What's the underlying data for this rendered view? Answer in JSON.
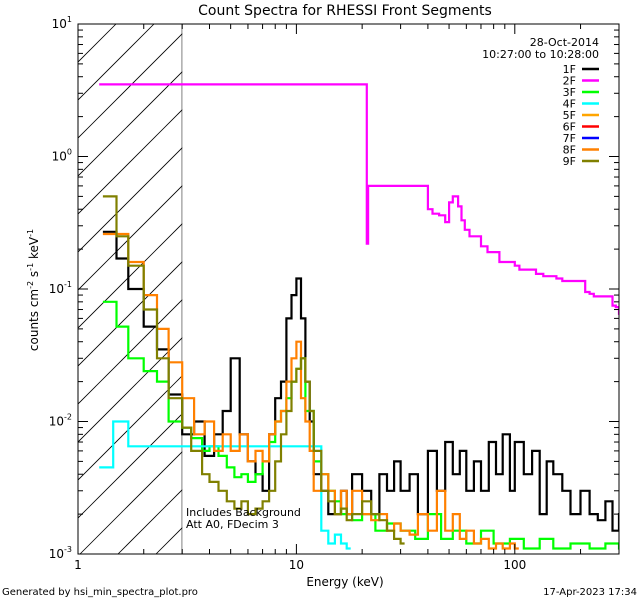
{
  "chart_data": {
    "type": "line",
    "title": "Count Spectra for RHESSI Front Segments",
    "xlabel": "Energy (keV)",
    "ylabel_main": "counts cm",
    "ylabel_sup1": "-2",
    "ylabel_mid": " s",
    "ylabel_sup2": "-1",
    "ylabel_end": " keV",
    "ylabel_sup3": "-1",
    "x_scale": "log",
    "y_scale": "log",
    "xlim": [
      1,
      300
    ],
    "ylim": [
      0.001,
      10
    ],
    "x_ticks": [
      {
        "value": 1,
        "label": "1"
      },
      {
        "value": 10,
        "label": "10"
      },
      {
        "value": 100,
        "label": "100"
      }
    ],
    "y_ticks": [
      {
        "value": 0.001,
        "base": "10",
        "exp": "-3"
      },
      {
        "value": 0.01,
        "base": "10",
        "exp": "-2"
      },
      {
        "value": 0.1,
        "base": "10",
        "exp": "-1"
      },
      {
        "value": 1,
        "base": "10",
        "exp": "0"
      },
      {
        "value": 10,
        "base": "10",
        "exp": "1"
      }
    ],
    "hatched_region": {
      "x_from": 1,
      "x_to": 3
    },
    "date_label": "28-Oct-2014",
    "time_label": "10:27:00 to 10:28:00",
    "annotation_line1": "Includes Background",
    "annotation_line2": "Att A0, FDecim 3",
    "footer_left": "Generated by hsi_min_spectra_plot.pro",
    "footer_right": "17-Apr-2023 17:34",
    "series": [
      {
        "name": "1F",
        "color": "#000000",
        "x": [
          1.3,
          1.5,
          1.7,
          2.0,
          2.3,
          2.6,
          3.0,
          3.4,
          3.8,
          4.2,
          4.6,
          5.0,
          5.5,
          6.0,
          6.5,
          7.0,
          7.5,
          8.0,
          8.5,
          9.0,
          9.5,
          10.0,
          10.5,
          11.0,
          11.5,
          12.0,
          13.0,
          14.0,
          15.0,
          16.0,
          17.0,
          18.0,
          20.0,
          22.0,
          24.0,
          26.0,
          28.0,
          30.0,
          33.0,
          36.0,
          40.0,
          44.0,
          48.0,
          52.0,
          56.0,
          60.0,
          65.0,
          70.0,
          76.0,
          82.0,
          88.0,
          95.0,
          100.0,
          110.0,
          120.0,
          130.0,
          140.0,
          150.0,
          165.0,
          180.0,
          200.0,
          220.0,
          240.0,
          260.0,
          280.0,
          300.0
        ],
        "y": [
          0.27,
          0.17,
          0.1,
          0.052,
          0.035,
          0.016,
          0.008,
          0.01,
          0.0055,
          0.008,
          0.012,
          0.03,
          0.008,
          0.005,
          0.004,
          0.003,
          0.008,
          0.015,
          0.02,
          0.06,
          0.09,
          0.12,
          0.06,
          0.02,
          0.01,
          0.004,
          0.003,
          0.002,
          0.002,
          0.003,
          0.002,
          0.004,
          0.003,
          0.002,
          0.004,
          0.003,
          0.005,
          0.003,
          0.004,
          0.002,
          0.006,
          0.003,
          0.007,
          0.004,
          0.006,
          0.003,
          0.005,
          0.003,
          0.007,
          0.004,
          0.008,
          0.003,
          0.007,
          0.004,
          0.006,
          0.002,
          0.005,
          0.004,
          0.003,
          0.002,
          0.003,
          0.002,
          0.0018,
          0.0025,
          0.0015,
          0.002
        ]
      },
      {
        "name": "2F",
        "color": "#ff00ff",
        "x": [
          1.25,
          1.4,
          21.0,
          21.3,
          40.0,
          42.0,
          45.0,
          48.0,
          50.0,
          52.0,
          55.0,
          57.0,
          59.0,
          62.0,
          70.0,
          75.0,
          85.0,
          100.0,
          105.0,
          115.0,
          125.0,
          135.0,
          155.0,
          165.0,
          210.0,
          220.0,
          230.0,
          280.0,
          290.0,
          300.0
        ],
        "y": [
          3.5,
          3.5,
          0.22,
          0.6,
          0.4,
          0.37,
          0.36,
          0.32,
          0.45,
          0.5,
          0.42,
          0.33,
          0.28,
          0.25,
          0.21,
          0.19,
          0.16,
          0.15,
          0.14,
          0.14,
          0.13,
          0.125,
          0.12,
          0.115,
          0.095,
          0.092,
          0.088,
          0.075,
          0.073,
          0.065
        ]
      },
      {
        "name": "3F",
        "color": "#00ff00",
        "x": [
          1.3,
          1.5,
          1.7,
          2.0,
          2.3,
          2.6,
          3.0,
          3.3,
          3.7,
          4.0,
          4.4,
          4.8,
          5.2,
          5.6,
          6.0,
          6.5,
          7.0,
          7.5,
          8.0,
          8.5,
          9.0,
          9.5,
          10.0,
          10.5,
          11.0,
          12.0,
          13.0,
          14.0,
          15.0,
          16.0,
          18.0,
          20.0,
          23.0,
          26.0,
          30.0,
          35.0,
          40.0,
          46.0,
          52.0,
          60.0,
          70.0,
          80.0,
          95.0,
          110.0,
          130.0,
          150.0,
          180.0,
          220.0,
          260.0,
          300.0
        ],
        "y": [
          0.08,
          0.052,
          0.03,
          0.024,
          0.02,
          0.01,
          0.009,
          0.0075,
          0.006,
          0.0065,
          0.0055,
          0.0045,
          0.0038,
          0.004,
          0.0035,
          0.004,
          0.005,
          0.007,
          0.01,
          0.012,
          0.015,
          0.02,
          0.025,
          0.03,
          0.012,
          0.005,
          0.004,
          0.003,
          0.0025,
          0.002,
          0.0018,
          0.002,
          0.0015,
          0.0017,
          0.0015,
          0.0013,
          0.002,
          0.0013,
          0.0015,
          0.0012,
          0.0015,
          0.0012,
          0.0013,
          0.0011,
          0.0013,
          0.0011,
          0.0012,
          0.0011,
          0.0012,
          0.0011
        ]
      },
      {
        "name": "4F",
        "color": "#00ffff",
        "x": [
          1.25,
          1.45,
          1.7,
          2.0,
          13.0,
          14.0,
          15.0,
          16.0,
          17.0
        ],
        "y": [
          0.0045,
          0.01,
          0.0065,
          0.0065,
          0.0015,
          0.0012,
          0.0014,
          0.0012,
          0.0011
        ]
      },
      {
        "name": "5F",
        "color": "#ffa500",
        "x": [],
        "y": []
      },
      {
        "name": "6F",
        "color": "#ff0000",
        "x": [],
        "y": []
      },
      {
        "name": "7F",
        "color": "#0000ff",
        "x": [],
        "y": []
      },
      {
        "name": "8F",
        "color": "#ff8000",
        "x": [
          1.3,
          1.5,
          1.7,
          2.0,
          2.3,
          2.6,
          3.0,
          3.4,
          3.8,
          4.2,
          4.6,
          5.0,
          5.5,
          6.0,
          6.5,
          7.0,
          7.5,
          8.0,
          8.5,
          9.0,
          9.5,
          10.0,
          10.5,
          11.0,
          11.5,
          12.0,
          13.0,
          14.0,
          15.0,
          16.0,
          17.0,
          18.0,
          20.0,
          22.0,
          24.0,
          26.0,
          28.0,
          30.0,
          33.0,
          36.0,
          40.0,
          44.0,
          48.0,
          52.0,
          56.0,
          60.0,
          65.0,
          70.0,
          76.0,
          82.0,
          88.0,
          95.0,
          100.0
        ],
        "y": [
          0.26,
          0.26,
          0.16,
          0.09,
          0.05,
          0.028,
          0.015,
          0.008,
          0.01,
          0.006,
          0.008,
          0.006,
          0.008,
          0.005,
          0.006,
          0.005,
          0.008,
          0.01,
          0.012,
          0.02,
          0.03,
          0.04,
          0.015,
          0.01,
          0.006,
          0.003,
          0.004,
          0.003,
          0.002,
          0.003,
          0.002,
          0.003,
          0.002,
          0.0018,
          0.002,
          0.0015,
          0.0017,
          0.0015,
          0.0014,
          0.002,
          0.0015,
          0.003,
          0.0015,
          0.002,
          0.0013,
          0.0015,
          0.0012,
          0.0013,
          0.0011,
          0.0012,
          0.0011,
          0.0012,
          0.0011
        ]
      },
      {
        "name": "9F",
        "color": "#808000",
        "x": [
          1.3,
          1.5,
          1.7,
          2.0,
          2.3,
          2.6,
          3.0,
          3.3,
          3.7,
          4.0,
          4.4,
          4.8,
          5.2,
          5.6,
          6.0,
          6.5,
          7.0,
          7.5,
          8.0,
          8.5,
          9.0,
          9.5,
          10.0,
          10.5,
          11.0,
          11.5,
          12.0,
          13.0,
          14.0,
          15.0,
          16.0,
          17.0,
          18.0,
          20.0,
          22.0,
          24.0,
          26.0,
          28.0,
          30.0
        ],
        "y": [
          0.5,
          0.25,
          0.15,
          0.07,
          0.03,
          0.015,
          0.009,
          0.006,
          0.004,
          0.0035,
          0.003,
          0.0025,
          0.0022,
          0.0025,
          0.002,
          0.0022,
          0.0025,
          0.003,
          0.005,
          0.008,
          0.012,
          0.02,
          0.025,
          0.03,
          0.02,
          0.012,
          0.006,
          0.003,
          0.0025,
          0.002,
          0.0022,
          0.0018,
          0.002,
          0.0025,
          0.002,
          0.0018,
          0.0015,
          0.0013,
          0.0012
        ]
      }
    ]
  }
}
